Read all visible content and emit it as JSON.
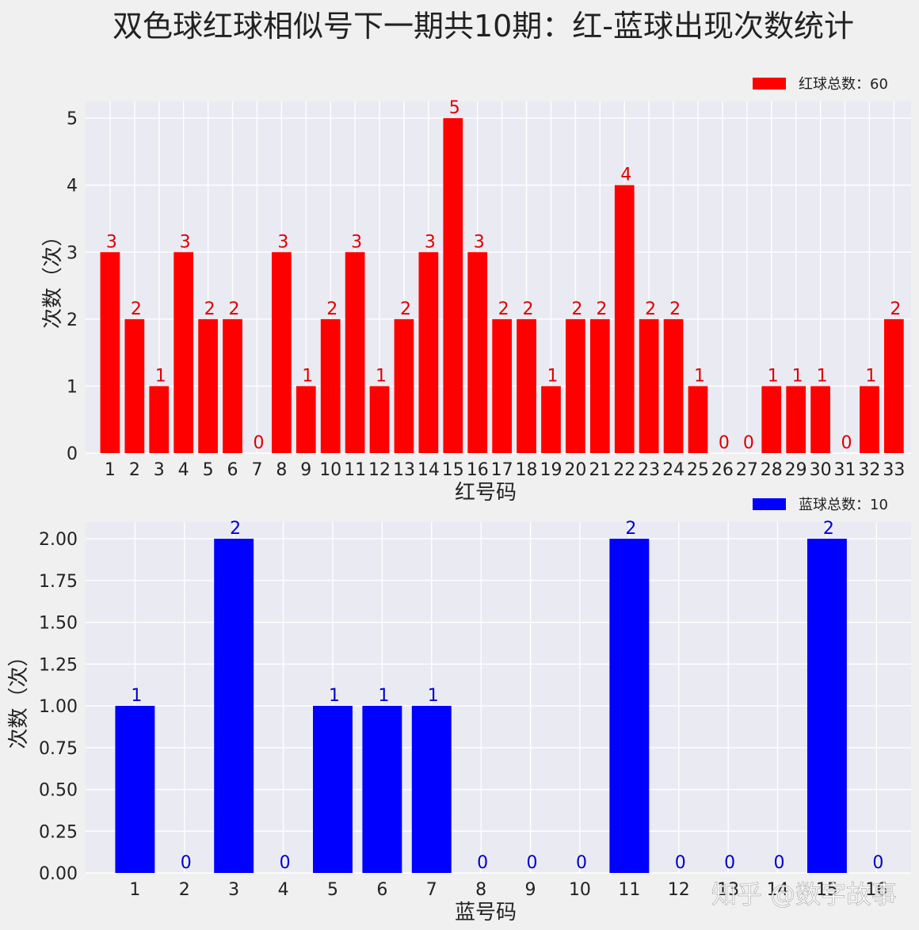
{
  "title": "双色球红球相似号下一期共10期：红-蓝球出现次数统计",
  "watermark": "知乎 @数字故事",
  "chart_data": [
    {
      "type": "bar",
      "name": "red",
      "color": "#ff0000",
      "label_color": "#dd0000",
      "categories": [
        "1",
        "2",
        "3",
        "4",
        "5",
        "6",
        "7",
        "8",
        "9",
        "10",
        "11",
        "12",
        "13",
        "14",
        "15",
        "16",
        "17",
        "18",
        "19",
        "20",
        "21",
        "22",
        "23",
        "24",
        "25",
        "26",
        "27",
        "28",
        "29",
        "30",
        "31",
        "32",
        "33"
      ],
      "values": [
        3,
        2,
        1,
        3,
        2,
        2,
        0,
        3,
        1,
        2,
        3,
        1,
        2,
        3,
        5,
        3,
        2,
        2,
        1,
        2,
        2,
        4,
        2,
        2,
        1,
        0,
        0,
        1,
        1,
        1,
        0,
        1,
        2
      ],
      "xlabel": "红号码",
      "ylabel": "次数（次）",
      "ylim": [
        0,
        5.25
      ],
      "yticks": [
        "0",
        "1",
        "2",
        "3",
        "4",
        "5"
      ],
      "ytick_values": [
        0,
        1,
        2,
        3,
        4,
        5
      ],
      "legend": "红球总数：60",
      "legend_position": "top-right",
      "grid": true
    },
    {
      "type": "bar",
      "name": "blue",
      "color": "#0000ff",
      "label_color": "#0000cc",
      "categories": [
        "1",
        "2",
        "3",
        "4",
        "5",
        "6",
        "7",
        "8",
        "9",
        "10",
        "11",
        "12",
        "13",
        "14",
        "15",
        "16"
      ],
      "values": [
        1,
        0,
        2,
        0,
        1,
        1,
        1,
        0,
        0,
        0,
        2,
        0,
        0,
        0,
        2,
        0
      ],
      "xlabel": "蓝号码",
      "ylabel": "次数（次）",
      "ylim": [
        0,
        2.1
      ],
      "yticks": [
        "0.00",
        "0.25",
        "0.50",
        "0.75",
        "1.00",
        "1.25",
        "1.50",
        "1.75",
        "2.00"
      ],
      "ytick_values": [
        0,
        0.25,
        0.5,
        0.75,
        1,
        1.25,
        1.5,
        1.75,
        2
      ],
      "legend": "蓝球总数：10",
      "legend_position": "top-right",
      "grid": true
    }
  ]
}
